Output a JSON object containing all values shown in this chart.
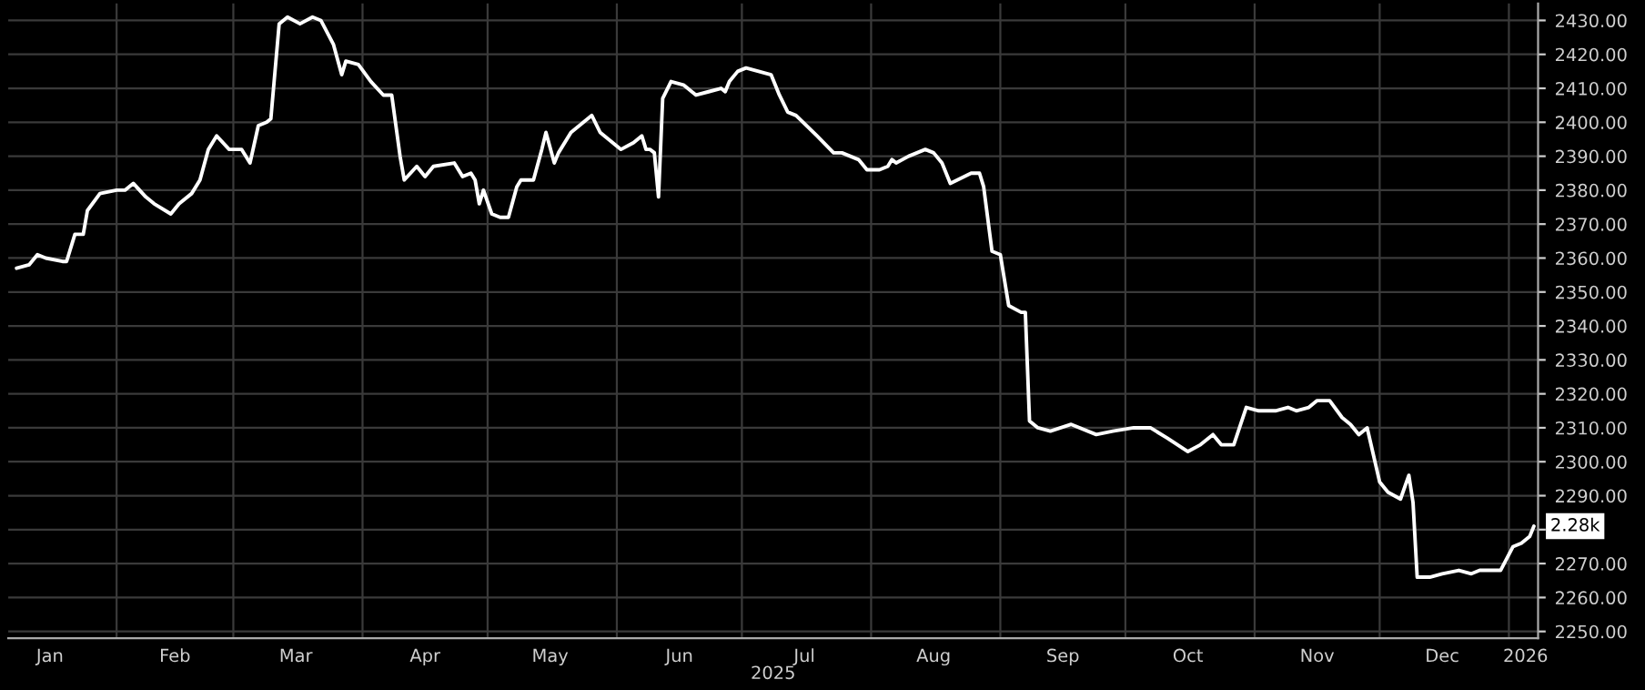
{
  "chart_data": {
    "type": "line",
    "xlabel": "2025",
    "x": [
      "2025-01-08",
      "2025-01-11",
      "2025-01-13",
      "2025-01-15",
      "2025-01-19",
      "2025-01-20",
      "2025-01-22",
      "2025-01-24",
      "2025-01-25",
      "2025-01-28",
      "2025-02-01",
      "2025-02-03",
      "2025-02-05",
      "2025-02-08",
      "2025-02-10",
      "2025-02-14",
      "2025-02-16",
      "2025-02-19",
      "2025-02-21",
      "2025-02-23",
      "2025-02-25",
      "2025-02-28",
      "2025-03-03",
      "2025-03-05",
      "2025-03-07",
      "2025-03-09",
      "2025-03-10",
      "2025-03-12",
      "2025-03-14",
      "2025-03-17",
      "2025-03-20",
      "2025-03-22",
      "2025-03-25",
      "2025-03-27",
      "2025-03-28",
      "2025-03-31",
      "2025-04-03",
      "2025-04-06",
      "2025-04-08",
      "2025-04-10",
      "2025-04-11",
      "2025-04-14",
      "2025-04-16",
      "2025-04-18",
      "2025-04-23",
      "2025-04-25",
      "2025-04-27",
      "2025-04-28",
      "2025-04-29",
      "2025-04-30",
      "2025-05-02",
      "2025-05-04",
      "2025-05-06",
      "2025-05-08",
      "2025-05-09",
      "2025-05-12",
      "2025-05-14",
      "2025-05-15",
      "2025-05-17",
      "2025-05-18",
      "2025-05-21",
      "2025-05-26",
      "2025-05-28",
      "2025-06-02",
      "2025-06-05",
      "2025-06-07",
      "2025-06-08",
      "2025-06-09",
      "2025-06-10",
      "2025-06-11",
      "2025-06-12",
      "2025-06-14",
      "2025-06-17",
      "2025-06-20",
      "2025-06-23",
      "2025-06-26",
      "2025-06-27",
      "2025-06-28",
      "2025-06-30",
      "2025-07-02",
      "2025-07-05",
      "2025-07-08",
      "2025-07-10",
      "2025-07-12",
      "2025-07-14",
      "2025-07-19",
      "2025-07-23",
      "2025-07-25",
      "2025-07-27",
      "2025-07-29",
      "2025-07-31",
      "2025-08-03",
      "2025-08-05",
      "2025-08-06",
      "2025-08-07",
      "2025-08-10",
      "2025-08-14",
      "2025-08-16",
      "2025-08-18",
      "2025-08-20",
      "2025-08-25",
      "2025-08-27",
      "2025-08-28",
      "2025-08-30",
      "2025-09-01",
      "2025-09-03",
      "2025-09-06",
      "2025-09-07",
      "2025-09-08",
      "2025-09-10",
      "2025-09-13",
      "2025-09-18",
      "2025-09-24",
      "2025-09-28",
      "2025-10-03",
      "2025-10-07",
      "2025-10-11",
      "2025-10-16",
      "2025-10-19",
      "2025-10-22",
      "2025-10-24",
      "2025-10-27",
      "2025-10-30",
      "2025-11-02",
      "2025-11-06",
      "2025-11-09",
      "2025-11-11",
      "2025-11-14",
      "2025-11-16",
      "2025-11-19",
      "2025-11-22",
      "2025-11-24",
      "2025-11-26",
      "2025-11-28",
      "2025-12-01",
      "2025-12-03",
      "2025-12-06",
      "2025-12-08",
      "2025-12-09",
      "2025-12-10",
      "2025-12-13",
      "2025-12-16",
      "2025-12-20",
      "2025-12-23",
      "2025-12-25",
      "2025-12-30",
      "2026-01-02",
      "2026-01-04",
      "2026-01-06",
      "2026-01-07"
    ],
    "series": [
      {
        "color": "#ffffff",
        "values": [
          2357,
          2358,
          2361,
          2360,
          2359,
          2359,
          2367,
          2367,
          2374,
          2379,
          2380,
          2380,
          2382,
          2378,
          2376,
          2373,
          2376,
          2379,
          2383,
          2392,
          2396,
          2392,
          2392,
          2388,
          2399,
          2400,
          2401,
          2429,
          2431,
          2429,
          2431,
          2430,
          2423,
          2414,
          2418,
          2417,
          2412,
          2408,
          2408,
          2390,
          2383,
          2387,
          2384,
          2387,
          2388,
          2384,
          2385,
          2383,
          2376,
          2380,
          2373,
          2372,
          2372,
          2381,
          2383,
          2383,
          2392,
          2397,
          2388,
          2391,
          2397,
          2402,
          2397,
          2392,
          2394,
          2396,
          2392,
          2392,
          2391,
          2378,
          2407,
          2412,
          2411,
          2408,
          2409,
          2410,
          2409,
          2412,
          2415,
          2416,
          2415,
          2414,
          2408,
          2403,
          2402,
          2396,
          2391,
          2391,
          2390,
          2389,
          2386,
          2386,
          2387,
          2389,
          2388,
          2390,
          2392,
          2391,
          2388,
          2382,
          2385,
          2385,
          2381,
          2362,
          2361,
          2346,
          2344,
          2344,
          2312,
          2310,
          2309,
          2311,
          2308,
          2309,
          2310,
          2310,
          2307,
          2303,
          2305,
          2308,
          2305,
          2305,
          2316,
          2315,
          2315,
          2316,
          2315,
          2316,
          2318,
          2318,
          2313,
          2311,
          2308,
          2310,
          2294,
          2291,
          2289,
          2296,
          2288,
          2266,
          2266,
          2267,
          2268,
          2267,
          2268,
          2268,
          2275,
          2276,
          2278,
          2281
        ]
      }
    ],
    "xlim": [
      "2025-01-06",
      "2026-01-08"
    ],
    "xticks": [
      {
        "value": "2025-02-01",
        "label": null
      },
      {
        "value": "2025-03-01",
        "label": null
      },
      {
        "value": "2025-04-01",
        "label": null
      },
      {
        "value": "2025-05-01",
        "label": null
      },
      {
        "value": "2025-06-01",
        "label": null
      },
      {
        "value": "2025-07-01",
        "label": null
      },
      {
        "value": "2025-08-01",
        "label": null
      },
      {
        "value": "2025-09-01",
        "label": null
      },
      {
        "value": "2025-10-01",
        "label": null
      },
      {
        "value": "2025-11-01",
        "label": null
      },
      {
        "value": "2025-12-01",
        "label": null
      },
      {
        "value": "2026-01-01",
        "label": null
      },
      {
        "value": "2025-01-16",
        "label": "Jan"
      },
      {
        "value": "2025-02-15",
        "label": "Feb"
      },
      {
        "value": "2025-03-16",
        "label": "Mar"
      },
      {
        "value": "2025-04-16",
        "label": "Apr"
      },
      {
        "value": "2025-05-16",
        "label": "May"
      },
      {
        "value": "2025-06-16",
        "label": "Jun"
      },
      {
        "value": "2025-07-16",
        "label": "Jul"
      },
      {
        "value": "2025-08-16",
        "label": "Aug"
      },
      {
        "value": "2025-09-16",
        "label": "Sep"
      },
      {
        "value": "2025-10-16",
        "label": "Oct"
      },
      {
        "value": "2025-11-16",
        "label": "Nov"
      },
      {
        "value": "2025-12-16",
        "label": "Dec"
      },
      {
        "value": "2026-01-05",
        "label": "2026"
      }
    ],
    "ylim": [
      2248,
      2435
    ],
    "yticks": [
      {
        "value": 2250,
        "label": "2250.00"
      },
      {
        "value": 2260,
        "label": "2260.00"
      },
      {
        "value": 2270,
        "label": "2270.00"
      },
      {
        "value": 2280,
        "label": null
      },
      {
        "value": 2290,
        "label": "2290.00"
      },
      {
        "value": 2300,
        "label": "2300.00"
      },
      {
        "value": 2310,
        "label": "2310.00"
      },
      {
        "value": 2320,
        "label": "2320.00"
      },
      {
        "value": 2330,
        "label": "2330.00"
      },
      {
        "value": 2340,
        "label": "2340.00"
      },
      {
        "value": 2350,
        "label": "2350.00"
      },
      {
        "value": 2360,
        "label": "2360.00"
      },
      {
        "value": 2370,
        "label": "2370.00"
      },
      {
        "value": 2380,
        "label": "2380.00"
      },
      {
        "value": 2390,
        "label": "2390.00"
      },
      {
        "value": 2400,
        "label": "2400.00"
      },
      {
        "value": 2410,
        "label": "2410.00"
      },
      {
        "value": 2420,
        "label": "2420.00"
      },
      {
        "value": 2430,
        "label": "2430.00"
      }
    ],
    "annotations": [
      {
        "text": "2.28k",
        "x": "2026-01-07",
        "y": 2281
      }
    ],
    "grid": true,
    "legend": false,
    "marker": "none",
    "line_style": "solid"
  }
}
